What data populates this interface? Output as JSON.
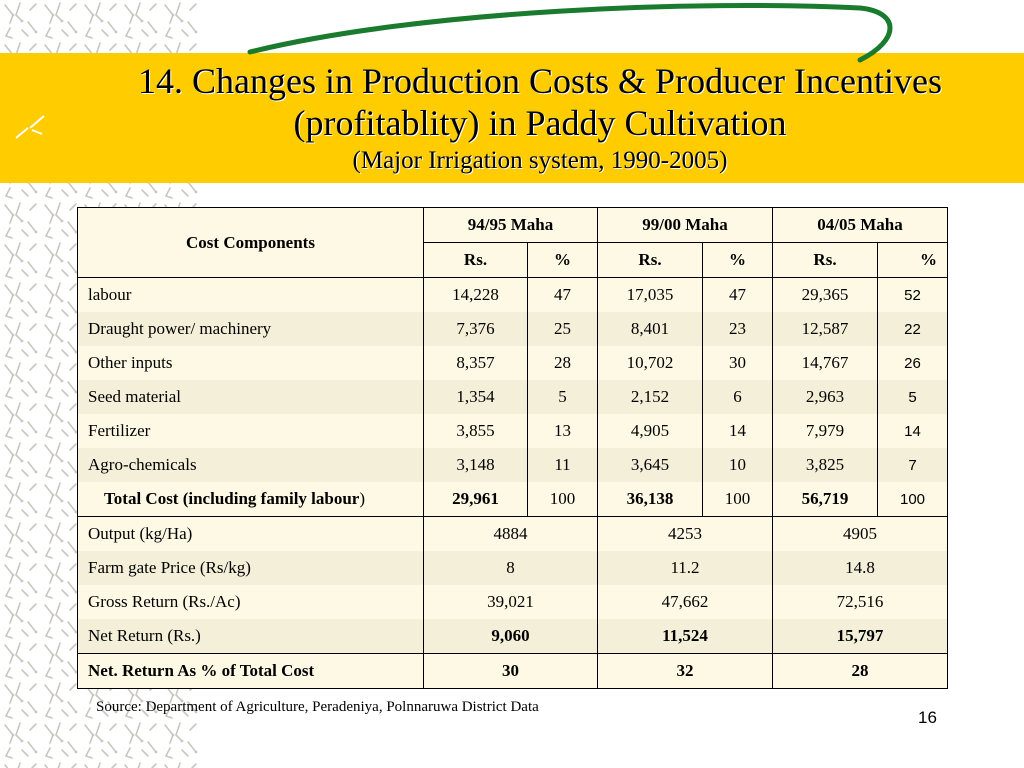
{
  "slide": {
    "title_line1": "14. Changes in Production Costs & Producer Incentives",
    "title_line2": "(profitablity) in Paddy Cultivation",
    "subtitle": "(Major Irrigation system, 1990-2005)",
    "source": "Source: Department of Agriculture, Peradeniya, Polnnaruwa District Data",
    "page_number": "16",
    "colors": {
      "banner": "#ffcc00",
      "swoosh": "#1a7a2e",
      "table_bg": "#fdf9e4"
    }
  },
  "table": {
    "corner_header": "Cost Components",
    "periods": [
      "94/95 Maha",
      "99/00 Maha",
      "04/05 Maha"
    ],
    "unit_rs": "Rs.",
    "unit_pct": "%",
    "cost_rows": [
      {
        "label": "labour",
        "v": [
          "14,228",
          "47",
          "17,035",
          "47",
          "29,365",
          "52"
        ]
      },
      {
        "label": "Draught power/ machinery",
        "v": [
          "7,376",
          "25",
          "8,401",
          "23",
          "12,587",
          "22"
        ]
      },
      {
        "label": "Other inputs",
        "v": [
          "8,357",
          "28",
          "10,702",
          "30",
          "14,767",
          "26"
        ]
      },
      {
        "label": "Seed material",
        "v": [
          "1,354",
          "5",
          "2,152",
          "6",
          "2,963",
          "5"
        ]
      },
      {
        "label": "Fertilizer",
        "v": [
          "3,855",
          "13",
          "4,905",
          "14",
          "7,979",
          "14"
        ]
      },
      {
        "label": "Agro-chemicals",
        "v": [
          "3,148",
          "11",
          "3,645",
          "10",
          "3,825",
          "7"
        ]
      }
    ],
    "total_row": {
      "label": "Total Cost (including family labour",
      "label_tail": ")",
      "v": [
        "29,961",
        "100",
        "36,138",
        "100",
        "56,719",
        "100"
      ]
    },
    "return_rows": [
      {
        "label": "Output (kg/Ha)",
        "v": [
          "4884",
          "4253",
          "4905"
        ]
      },
      {
        "label": "Farm gate Price (Rs/kg)",
        "v": [
          "8",
          "11.2",
          "14.8"
        ]
      },
      {
        "label": "Gross Return (Rs./Ac)",
        "v": [
          "39,021",
          "47,662",
          "72,516"
        ]
      },
      {
        "label": "Net Return (Rs.)",
        "v": [
          "9,060",
          "11,524",
          "15,797"
        ]
      }
    ],
    "final_row": {
      "label": "Net. Return As % of Total Cost",
      "v": [
        "30",
        "32",
        "28"
      ]
    }
  }
}
